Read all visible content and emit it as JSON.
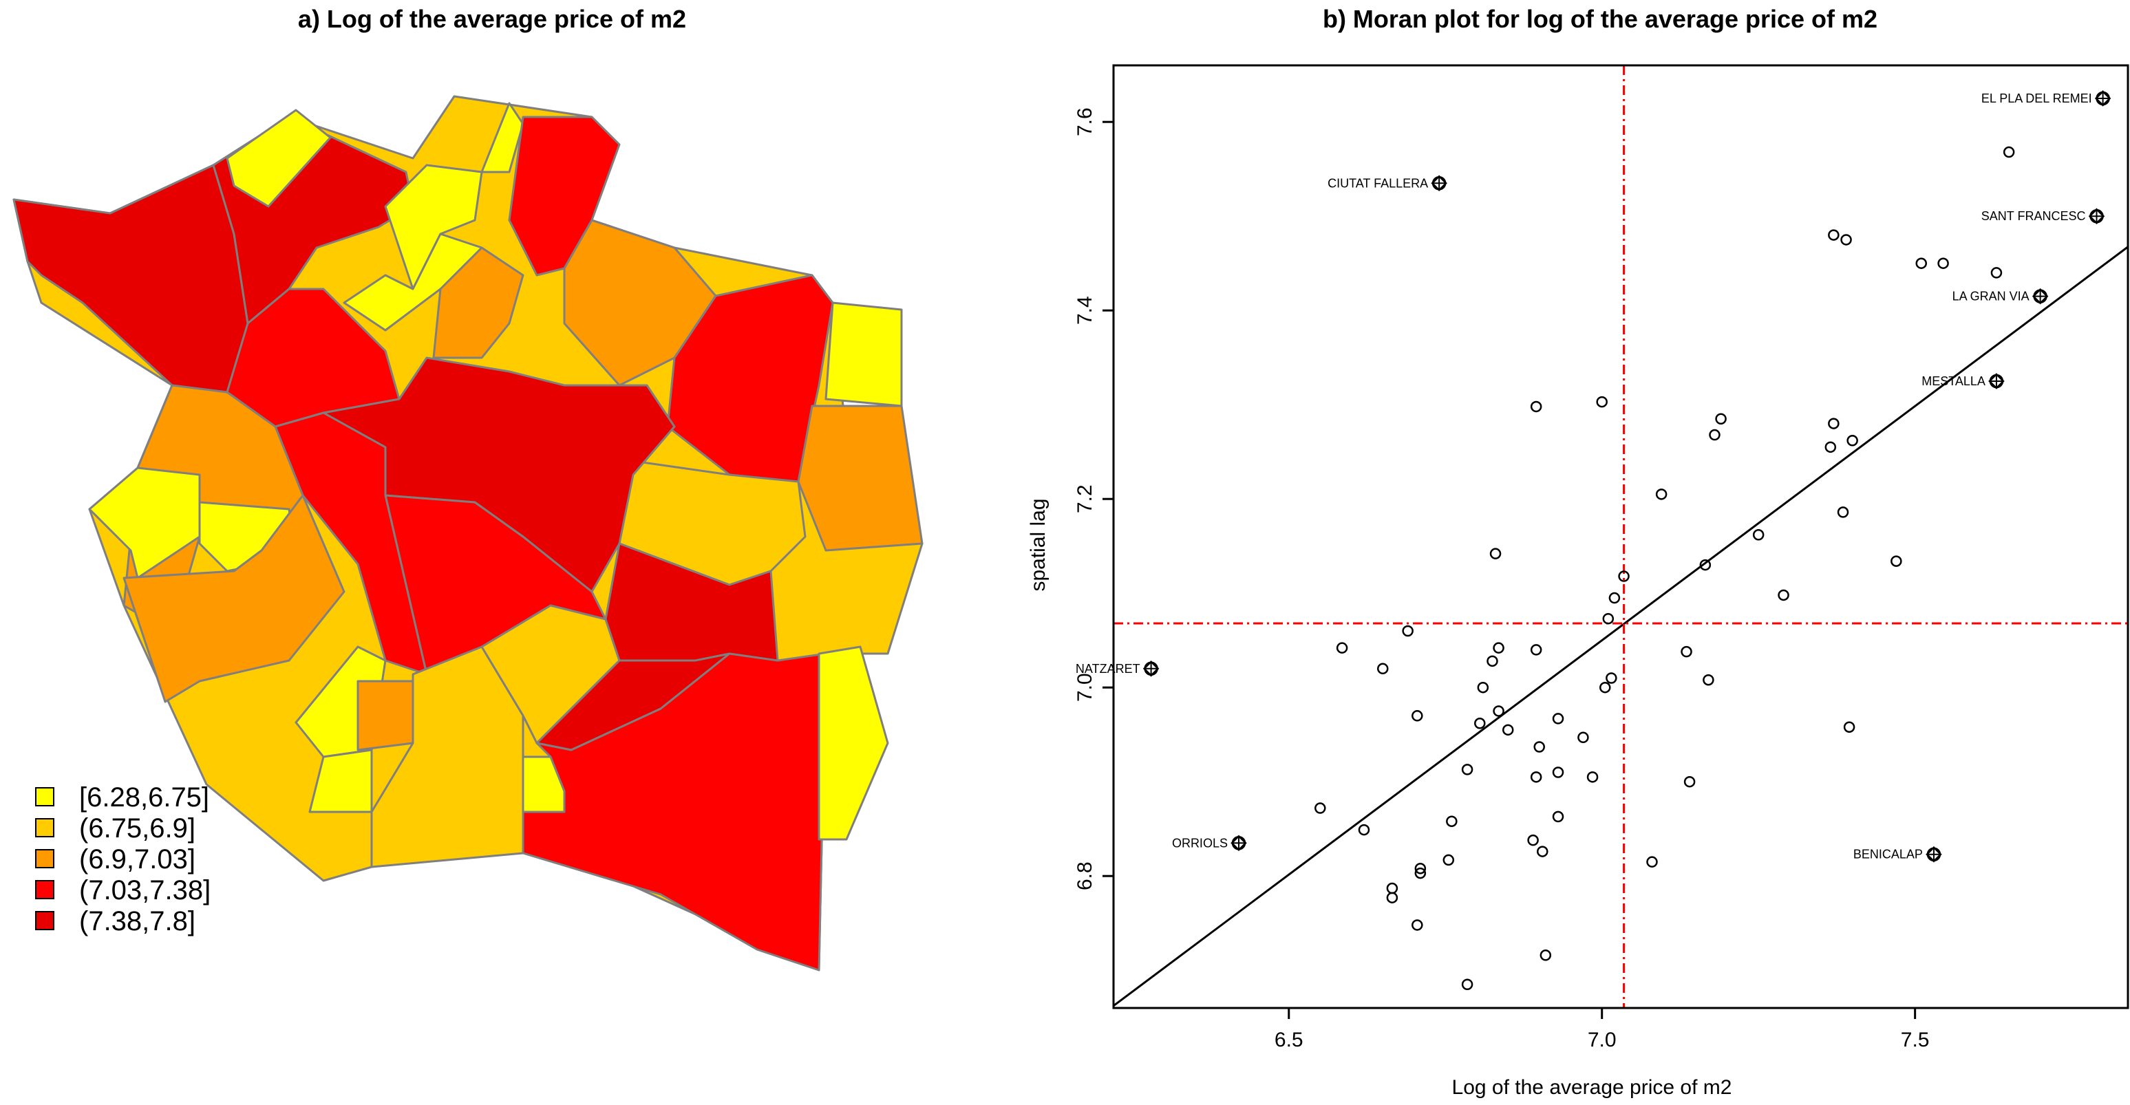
{
  "colors": {
    "c1": "#FFFF00",
    "c2": "#FFCC00",
    "c3": "#FF9900",
    "c4": "#FF0000",
    "c5": "#E60000",
    "border": "#7f7f7f",
    "ref_line": "#FF0000"
  },
  "map": {
    "title": "a) Log of the average price of m2",
    "legend": [
      {
        "label": "[6.28,6.75]",
        "color_key": "c1"
      },
      {
        "label": "(6.75,6.9]",
        "color_key": "c2"
      },
      {
        "label": "(6.9,7.03]",
        "color_key": "c3"
      },
      {
        "label": "(7.03,7.38]",
        "color_key": "c4"
      },
      {
        "label": "(7.38,7.8]",
        "color_key": "c5"
      }
    ]
  },
  "chart_data": {
    "type": "scatter",
    "title": "b) Moran plot for log of the average price of m2",
    "xlabel": "Log of the average price of m2",
    "ylabel": "spatial lag",
    "xlim": [
      6.22,
      7.84
    ],
    "ylim": [
      6.66,
      7.66
    ],
    "x_ticks": [
      "6.5",
      "7.0",
      "7.5"
    ],
    "y_ticks": [
      "6.8",
      "7.0",
      "7.2",
      "7.4",
      "7.6"
    ],
    "mean_x": 7.035,
    "mean_y": 7.068,
    "regression": {
      "slope": 0.497,
      "intercept": 3.571
    },
    "labeled_points": [
      {
        "label": "EL PLA DEL REMEI",
        "x": 7.8,
        "y": 7.625
      },
      {
        "label": "CIUTAT FALLERA",
        "x": 6.74,
        "y": 7.535
      },
      {
        "label": "SANT FRANCESC",
        "x": 7.79,
        "y": 7.5
      },
      {
        "label": "LA GRAN VIA",
        "x": 7.7,
        "y": 7.415
      },
      {
        "label": "MESTALLA",
        "x": 7.63,
        "y": 7.325
      },
      {
        "label": "NATZARET",
        "x": 6.28,
        "y": 7.02
      },
      {
        "label": "ORRIOLS",
        "x": 6.42,
        "y": 6.835
      },
      {
        "label": "BENICALAP",
        "x": 7.53,
        "y": 6.823
      }
    ],
    "points": [
      [
        7.65,
        7.568
      ],
      [
        7.37,
        7.48
      ],
      [
        7.39,
        7.475
      ],
      [
        7.51,
        7.45
      ],
      [
        7.545,
        7.45
      ],
      [
        7.63,
        7.44
      ],
      [
        6.895,
        7.298
      ],
      [
        7.0,
        7.303
      ],
      [
        7.19,
        7.285
      ],
      [
        7.37,
        7.28
      ],
      [
        7.18,
        7.268
      ],
      [
        7.4,
        7.262
      ],
      [
        7.365,
        7.255
      ],
      [
        7.095,
        7.205
      ],
      [
        7.385,
        7.186
      ],
      [
        7.25,
        7.162
      ],
      [
        6.83,
        7.142
      ],
      [
        7.165,
        7.13
      ],
      [
        7.47,
        7.134
      ],
      [
        7.035,
        7.118
      ],
      [
        7.29,
        7.098
      ],
      [
        7.02,
        7.095
      ],
      [
        7.01,
        7.073
      ],
      [
        6.69,
        7.06
      ],
      [
        6.585,
        7.042
      ],
      [
        6.835,
        7.042
      ],
      [
        6.895,
        7.04
      ],
      [
        7.135,
        7.038
      ],
      [
        6.825,
        7.028
      ],
      [
        6.65,
        7.02
      ],
      [
        7.015,
        7.01
      ],
      [
        7.17,
        7.008
      ],
      [
        6.81,
        7.0
      ],
      [
        7.005,
        7.0
      ],
      [
        6.705,
        6.97
      ],
      [
        6.835,
        6.975
      ],
      [
        6.93,
        6.967
      ],
      [
        6.805,
        6.962
      ],
      [
        7.395,
        6.958
      ],
      [
        6.85,
        6.955
      ],
      [
        6.97,
        6.947
      ],
      [
        6.9,
        6.937
      ],
      [
        6.785,
        6.913
      ],
      [
        6.93,
        6.91
      ],
      [
        6.895,
        6.905
      ],
      [
        6.985,
        6.905
      ],
      [
        7.14,
        6.9
      ],
      [
        6.55,
        6.872
      ],
      [
        6.93,
        6.863
      ],
      [
        6.76,
        6.858
      ],
      [
        6.62,
        6.849
      ],
      [
        6.89,
        6.838
      ],
      [
        6.905,
        6.826
      ],
      [
        6.755,
        6.817
      ],
      [
        7.08,
        6.815
      ],
      [
        6.71,
        6.808
      ],
      [
        6.71,
        6.803
      ],
      [
        6.665,
        6.787
      ],
      [
        6.665,
        6.777
      ],
      [
        6.705,
        6.748
      ],
      [
        6.91,
        6.716
      ],
      [
        6.785,
        6.685
      ]
    ]
  }
}
